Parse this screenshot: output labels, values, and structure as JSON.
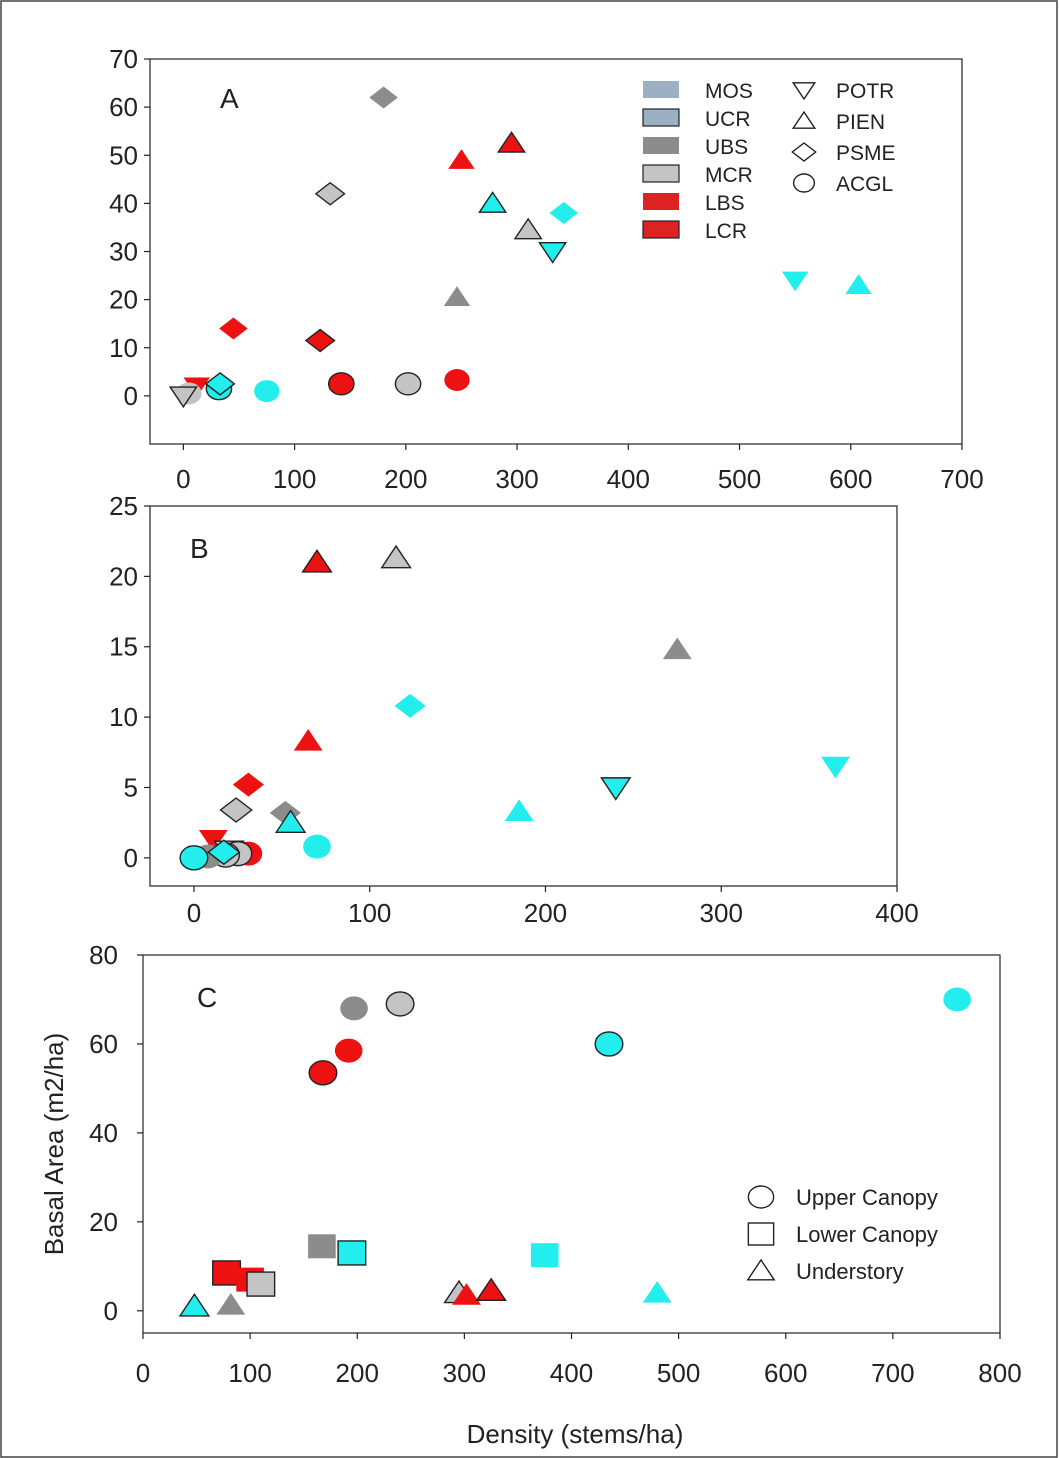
{
  "figure": {
    "xlabel": "Density (stems/ha)",
    "ylabel": "Basal Area (m2/ha)"
  },
  "stand_legend": [
    {
      "code": "MOS",
      "color": "#9bb0c2",
      "stroke": "none"
    },
    {
      "code": "UCR",
      "color": "#9bb0c2",
      "stroke": "#222222"
    },
    {
      "code": "UBS",
      "color": "#8c8c8c",
      "stroke": "none"
    },
    {
      "code": "MCR",
      "color": "#c4c4c4",
      "stroke": "#222222"
    },
    {
      "code": "LBS",
      "color": "#dd2222",
      "stroke": "none"
    },
    {
      "code": "LCR",
      "color": "#dd2222",
      "stroke": "#222222"
    }
  ],
  "species_legend": [
    {
      "code": "POTR",
      "shape": "triangle-down"
    },
    {
      "code": "PIEN",
      "shape": "triangle-up"
    },
    {
      "code": "PSME",
      "shape": "diamond"
    },
    {
      "code": "ACGL",
      "shape": "circle"
    }
  ],
  "layer_legend": [
    {
      "label": "Upper Canopy",
      "shape": "circle"
    },
    {
      "label": "Lower Canopy",
      "shape": "square"
    },
    {
      "label": "Understory",
      "shape": "triangle-up"
    }
  ],
  "colors": {
    "cyan": "#22eeee",
    "red": "#ee1111",
    "gray": "#8c8c8c",
    "light_gray": "#c4c4c4",
    "outline": "#222222"
  },
  "chart_data": [
    {
      "type": "scatter",
      "panel": "A",
      "xlim": [
        -30,
        700
      ],
      "ylim": [
        -10,
        70
      ],
      "xticks": [
        0,
        100,
        200,
        300,
        400,
        500,
        600,
        700
      ],
      "yticks": [
        0,
        10,
        20,
        30,
        40,
        50,
        60,
        70
      ],
      "points": [
        {
          "x": 180,
          "y": 62,
          "shape": "diamond",
          "fill": "gray",
          "outline": false
        },
        {
          "x": 295,
          "y": 52.5,
          "shape": "triangle-up",
          "fill": "red",
          "outline": true
        },
        {
          "x": 250,
          "y": 49,
          "shape": "triangle-up",
          "fill": "red",
          "outline": false
        },
        {
          "x": 132,
          "y": 42,
          "shape": "diamond",
          "fill": "light_gray",
          "outline": true
        },
        {
          "x": 278,
          "y": 40,
          "shape": "triangle-up",
          "fill": "cyan",
          "outline": true
        },
        {
          "x": 342,
          "y": 38,
          "shape": "diamond",
          "fill": "cyan",
          "outline": false
        },
        {
          "x": 310,
          "y": 34.5,
          "shape": "triangle-up",
          "fill": "light_gray",
          "outline": true
        },
        {
          "x": 332,
          "y": 30,
          "shape": "triangle-down",
          "fill": "cyan",
          "outline": true
        },
        {
          "x": 550,
          "y": 24,
          "shape": "triangle-down",
          "fill": "cyan",
          "outline": false
        },
        {
          "x": 607,
          "y": 23,
          "shape": "triangle-up",
          "fill": "cyan",
          "outline": false
        },
        {
          "x": 246,
          "y": 20.5,
          "shape": "triangle-up",
          "fill": "gray",
          "outline": false
        },
        {
          "x": 45,
          "y": 14,
          "shape": "diamond",
          "fill": "red",
          "outline": false
        },
        {
          "x": 123,
          "y": 11.5,
          "shape": "diamond",
          "fill": "red",
          "outline": true
        },
        {
          "x": 12,
          "y": 2,
          "shape": "triangle-down",
          "fill": "red",
          "outline": false
        },
        {
          "x": 5,
          "y": 0.5,
          "shape": "circle",
          "fill": "light_gray",
          "outline": false
        },
        {
          "x": 0,
          "y": 0,
          "shape": "triangle-down",
          "fill": "light_gray",
          "outline": true
        },
        {
          "x": 32,
          "y": 1.5,
          "shape": "circle",
          "fill": "cyan",
          "outline": true
        },
        {
          "x": 33,
          "y": 2.5,
          "shape": "diamond",
          "fill": "cyan",
          "outline": true
        },
        {
          "x": 75,
          "y": 1,
          "shape": "circle",
          "fill": "cyan",
          "outline": false
        },
        {
          "x": 142,
          "y": 2.5,
          "shape": "circle",
          "fill": "red",
          "outline": true
        },
        {
          "x": 202,
          "y": 2.5,
          "shape": "circle",
          "fill": "light_gray",
          "outline": true
        },
        {
          "x": 246,
          "y": 3.3,
          "shape": "circle",
          "fill": "red",
          "outline": false
        }
      ]
    },
    {
      "type": "scatter",
      "panel": "B",
      "xlim": [
        -25,
        400
      ],
      "ylim": [
        -2,
        25
      ],
      "xticks": [
        0,
        100,
        200,
        300,
        400
      ],
      "yticks": [
        0,
        5,
        10,
        15,
        20,
        25
      ],
      "points": [
        {
          "x": 70,
          "y": 21,
          "shape": "triangle-up",
          "fill": "red",
          "outline": true
        },
        {
          "x": 115,
          "y": 21.3,
          "shape": "triangle-up",
          "fill": "light_gray",
          "outline": true
        },
        {
          "x": 275,
          "y": 14.8,
          "shape": "triangle-up",
          "fill": "gray",
          "outline": false
        },
        {
          "x": 123,
          "y": 10.8,
          "shape": "diamond",
          "fill": "cyan",
          "outline": false
        },
        {
          "x": 65,
          "y": 8.3,
          "shape": "triangle-up",
          "fill": "red",
          "outline": false
        },
        {
          "x": 365,
          "y": 6.5,
          "shape": "triangle-down",
          "fill": "cyan",
          "outline": false
        },
        {
          "x": 31,
          "y": 5.2,
          "shape": "diamond",
          "fill": "red",
          "outline": false
        },
        {
          "x": 240,
          "y": 5,
          "shape": "triangle-down",
          "fill": "cyan",
          "outline": true
        },
        {
          "x": 24,
          "y": 3.4,
          "shape": "diamond",
          "fill": "light_gray",
          "outline": true
        },
        {
          "x": 52,
          "y": 3.2,
          "shape": "diamond",
          "fill": "gray",
          "outline": false
        },
        {
          "x": 185,
          "y": 3.3,
          "shape": "triangle-up",
          "fill": "cyan",
          "outline": false
        },
        {
          "x": 55,
          "y": 2.5,
          "shape": "triangle-up",
          "fill": "cyan",
          "outline": true
        },
        {
          "x": 11,
          "y": 1.3,
          "shape": "triangle-down",
          "fill": "red",
          "outline": false
        },
        {
          "x": 70,
          "y": 0.8,
          "shape": "circle",
          "fill": "cyan",
          "outline": false
        },
        {
          "x": 20,
          "y": 0.5,
          "shape": "triangle-down",
          "fill": "light_gray",
          "outline": true
        },
        {
          "x": 31,
          "y": 0.3,
          "shape": "circle",
          "fill": "red",
          "outline": false
        },
        {
          "x": 25,
          "y": 0.3,
          "shape": "circle",
          "fill": "light_gray",
          "outline": true
        },
        {
          "x": 18,
          "y": 0.2,
          "shape": "circle",
          "fill": "light_gray",
          "outline": true
        },
        {
          "x": 8,
          "y": 0.1,
          "shape": "circle",
          "fill": "gray",
          "outline": false
        },
        {
          "x": 0,
          "y": 0,
          "shape": "circle",
          "fill": "cyan",
          "outline": true
        },
        {
          "x": 17,
          "y": 0.4,
          "shape": "diamond",
          "fill": "cyan",
          "outline": true
        }
      ]
    },
    {
      "type": "scatter",
      "panel": "C",
      "xlim": [
        0,
        800
      ],
      "ylim": [
        -5,
        80
      ],
      "xticks": [
        0,
        100,
        200,
        300,
        400,
        500,
        600,
        700,
        800
      ],
      "yticks": [
        0,
        20,
        40,
        60,
        80
      ],
      "xlabel": "Density (stems/ha)",
      "ylabel": "Basal Area (m2/ha)",
      "points": [
        {
          "x": 760,
          "y": 70,
          "shape": "circle",
          "fill": "cyan",
          "outline": false
        },
        {
          "x": 240,
          "y": 69,
          "shape": "circle",
          "fill": "light_gray",
          "outline": true
        },
        {
          "x": 197,
          "y": 68,
          "shape": "circle",
          "fill": "gray",
          "outline": false
        },
        {
          "x": 435,
          "y": 60,
          "shape": "circle",
          "fill": "cyan",
          "outline": true
        },
        {
          "x": 192,
          "y": 58.5,
          "shape": "circle",
          "fill": "red",
          "outline": false
        },
        {
          "x": 168,
          "y": 53.5,
          "shape": "circle",
          "fill": "red",
          "outline": true
        },
        {
          "x": 167,
          "y": 14.5,
          "shape": "square",
          "fill": "gray",
          "outline": false
        },
        {
          "x": 195,
          "y": 13,
          "shape": "square",
          "fill": "cyan",
          "outline": true
        },
        {
          "x": 375,
          "y": 12.5,
          "shape": "square",
          "fill": "cyan",
          "outline": false
        },
        {
          "x": 78,
          "y": 8.5,
          "shape": "square",
          "fill": "red",
          "outline": true
        },
        {
          "x": 100,
          "y": 7,
          "shape": "square",
          "fill": "red",
          "outline": false
        },
        {
          "x": 110,
          "y": 6,
          "shape": "square",
          "fill": "light_gray",
          "outline": true
        },
        {
          "x": 48,
          "y": 1,
          "shape": "triangle-up",
          "fill": "cyan",
          "outline": true
        },
        {
          "x": 82,
          "y": 1.3,
          "shape": "triangle-up",
          "fill": "gray",
          "outline": false
        },
        {
          "x": 295,
          "y": 4,
          "shape": "triangle-up",
          "fill": "light_gray",
          "outline": true
        },
        {
          "x": 302,
          "y": 3.5,
          "shape": "triangle-up",
          "fill": "red",
          "outline": false
        },
        {
          "x": 325,
          "y": 4.5,
          "shape": "triangle-up",
          "fill": "red",
          "outline": true
        },
        {
          "x": 480,
          "y": 4,
          "shape": "triangle-up",
          "fill": "cyan",
          "outline": false
        }
      ]
    }
  ]
}
